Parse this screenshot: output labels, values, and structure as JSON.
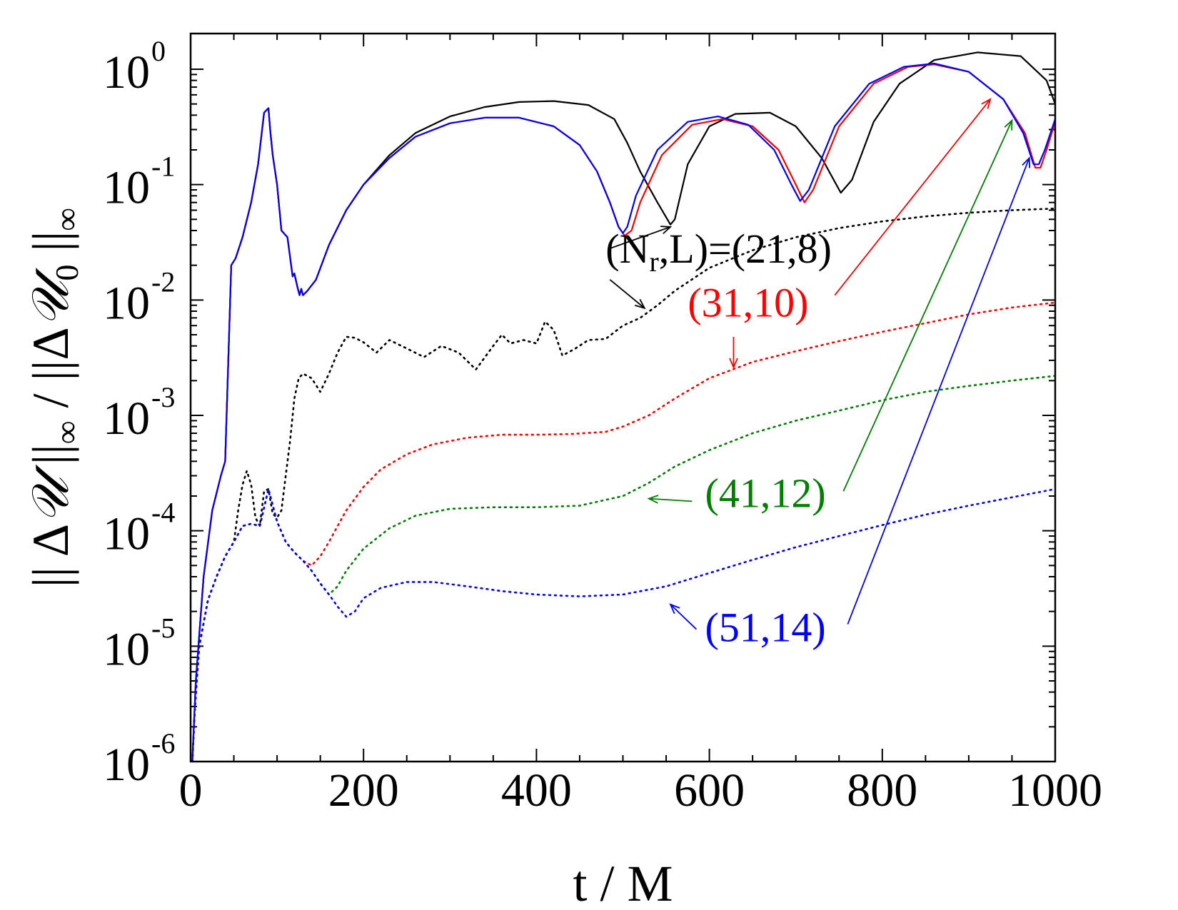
{
  "chart_data": {
    "type": "line",
    "title": "",
    "xlabel": "t / M",
    "ylabel_parts": [
      "|| Δ",
      "𝒰",
      " ||",
      "∞",
      " / ||Δ",
      "𝒰",
      "0",
      " ||",
      "∞"
    ],
    "xlim": [
      0,
      1000
    ],
    "ylim": [
      1e-06,
      2
    ],
    "yscale": "log",
    "x_ticks": [
      "0",
      "200",
      "400",
      "600",
      "800",
      "1000"
    ],
    "y_ticks": [
      {
        "base": "10",
        "exp": "-6"
      },
      {
        "base": "10",
        "exp": "-5"
      },
      {
        "base": "10",
        "exp": "-4"
      },
      {
        "base": "10",
        "exp": "-3"
      },
      {
        "base": "10",
        "exp": "-2"
      },
      {
        "base": "10",
        "exp": "-1"
      },
      {
        "base": "10",
        "exp": "0"
      }
    ],
    "grid": false,
    "legend": "none",
    "series": [
      {
        "style": "solid",
        "color": "#000000",
        "x": [
          2,
          6,
          15,
          25,
          35,
          40,
          47,
          52,
          60,
          70,
          78,
          85,
          90,
          92,
          95,
          100,
          105,
          112,
          118,
          120,
          124,
          126,
          128,
          130,
          135,
          145,
          160,
          180,
          200,
          230,
          260,
          300,
          340,
          380,
          420,
          460,
          490,
          505,
          520,
          540,
          555,
          560,
          575,
          600,
          630,
          670,
          700,
          730,
          752,
          765,
          790,
          820,
          860,
          910,
          960,
          990,
          1000
        ],
        "y": [
          1e-06,
          5e-06,
          4e-05,
          0.00015,
          0.0003,
          0.0004,
          0.02,
          0.023,
          0.035,
          0.07,
          0.15,
          0.42,
          0.46,
          0.3,
          0.18,
          0.1,
          0.04,
          0.035,
          0.016,
          0.017,
          0.0125,
          0.011,
          0.0125,
          0.011,
          0.012,
          0.015,
          0.03,
          0.06,
          0.1,
          0.18,
          0.28,
          0.39,
          0.47,
          0.52,
          0.53,
          0.49,
          0.37,
          0.23,
          0.13,
          0.07,
          0.045,
          0.05,
          0.15,
          0.32,
          0.41,
          0.42,
          0.32,
          0.17,
          0.085,
          0.11,
          0.35,
          0.75,
          1.2,
          1.4,
          1.3,
          0.8,
          0.5
        ]
      },
      {
        "style": "solid",
        "color": "#ff0000",
        "x": [
          2,
          6,
          15,
          25,
          35,
          40,
          47,
          52,
          60,
          70,
          78,
          85,
          90,
          92,
          95,
          100,
          105,
          112,
          118,
          120,
          124,
          126,
          128,
          130,
          135,
          145,
          160,
          180,
          200,
          230,
          260,
          300,
          340,
          380,
          420,
          450,
          470,
          485,
          495,
          502,
          510,
          520,
          545,
          580,
          615,
          650,
          680,
          700,
          710,
          720,
          750,
          790,
          830,
          860,
          900,
          940,
          965,
          977,
          983,
          990,
          1000
        ],
        "y": [
          1e-06,
          5e-06,
          4e-05,
          0.00015,
          0.0003,
          0.0004,
          0.02,
          0.023,
          0.035,
          0.07,
          0.15,
          0.42,
          0.46,
          0.3,
          0.18,
          0.1,
          0.04,
          0.035,
          0.016,
          0.017,
          0.0125,
          0.011,
          0.0125,
          0.011,
          0.012,
          0.015,
          0.03,
          0.06,
          0.1,
          0.17,
          0.26,
          0.34,
          0.38,
          0.38,
          0.32,
          0.22,
          0.13,
          0.07,
          0.043,
          0.036,
          0.04,
          0.07,
          0.18,
          0.33,
          0.37,
          0.32,
          0.2,
          0.1,
          0.07,
          0.09,
          0.32,
          0.75,
          1.05,
          1.1,
          0.95,
          0.55,
          0.28,
          0.14,
          0.14,
          0.2,
          0.35
        ]
      },
      {
        "style": "solid",
        "color": "#0000ff",
        "x": [
          2,
          6,
          15,
          25,
          35,
          40,
          47,
          52,
          60,
          70,
          78,
          85,
          90,
          92,
          95,
          100,
          105,
          112,
          118,
          120,
          124,
          126,
          128,
          130,
          135,
          145,
          160,
          180,
          200,
          230,
          260,
          300,
          340,
          380,
          420,
          450,
          470,
          485,
          495,
          500,
          505,
          515,
          540,
          575,
          610,
          645,
          675,
          695,
          705,
          715,
          745,
          785,
          825,
          860,
          900,
          940,
          963,
          975,
          981,
          988,
          1000
        ],
        "y": [
          1e-06,
          5e-06,
          4e-05,
          0.00015,
          0.0003,
          0.0004,
          0.02,
          0.023,
          0.035,
          0.07,
          0.15,
          0.42,
          0.46,
          0.3,
          0.18,
          0.1,
          0.04,
          0.035,
          0.016,
          0.017,
          0.0125,
          0.011,
          0.0125,
          0.011,
          0.012,
          0.015,
          0.03,
          0.06,
          0.1,
          0.17,
          0.26,
          0.34,
          0.38,
          0.38,
          0.32,
          0.22,
          0.13,
          0.07,
          0.043,
          0.038,
          0.043,
          0.08,
          0.2,
          0.35,
          0.39,
          0.33,
          0.2,
          0.1,
          0.072,
          0.09,
          0.32,
          0.75,
          1.05,
          1.12,
          0.95,
          0.55,
          0.28,
          0.15,
          0.15,
          0.2,
          0.37
        ]
      },
      {
        "style": "dotted",
        "color": "#000000",
        "x": [
          2,
          5,
          10,
          20,
          30,
          40,
          50,
          55,
          60,
          65,
          70,
          75,
          80,
          85,
          90,
          95,
          100,
          105,
          110,
          115,
          120,
          125,
          130,
          140,
          150,
          160,
          170,
          180,
          190,
          200,
          215,
          230,
          250,
          270,
          290,
          310,
          330,
          350,
          360,
          370,
          385,
          400,
          410,
          420,
          430,
          445,
          460,
          480,
          500,
          520,
          540,
          560,
          600,
          650,
          700,
          750,
          800,
          850,
          900,
          950,
          1000
        ],
        "y": [
          1e-06,
          3e-06,
          1e-05,
          2.5e-05,
          4e-05,
          6e-05,
          8e-05,
          0.00015,
          0.00025,
          0.00033,
          0.00025,
          0.00013,
          0.00011,
          0.00022,
          0.00023,
          0.00014,
          0.00013,
          0.00015,
          0.0003,
          0.0006,
          0.0014,
          0.0021,
          0.0023,
          0.0021,
          0.0016,
          0.0023,
          0.0035,
          0.0048,
          0.0047,
          0.0043,
          0.0035,
          0.0045,
          0.0038,
          0.0032,
          0.004,
          0.0035,
          0.0025,
          0.004,
          0.005,
          0.0042,
          0.0045,
          0.0042,
          0.0065,
          0.0055,
          0.0033,
          0.0038,
          0.0045,
          0.0046,
          0.006,
          0.007,
          0.009,
          0.012,
          0.019,
          0.027,
          0.035,
          0.042,
          0.048,
          0.053,
          0.057,
          0.06,
          0.062
        ]
      },
      {
        "style": "dotted",
        "color": "#ff0000",
        "x": [
          2,
          5,
          10,
          20,
          30,
          40,
          50,
          60,
          70,
          80,
          90,
          100,
          110,
          120,
          130,
          140,
          150,
          160,
          170,
          180,
          200,
          220,
          250,
          280,
          320,
          360,
          400,
          440,
          480,
          500,
          530,
          560,
          600,
          650,
          700,
          750,
          800,
          850,
          900,
          950,
          1000
        ],
        "y": [
          1e-06,
          3e-06,
          1e-05,
          2.5e-05,
          4e-05,
          6e-05,
          8e-05,
          0.00011,
          0.000115,
          0.00011,
          0.00023,
          0.00012,
          8e-05,
          6.5e-05,
          5.5e-05,
          5e-05,
          6e-05,
          8e-05,
          0.00011,
          0.00015,
          0.00024,
          0.00034,
          0.00046,
          0.00056,
          0.00064,
          0.00068,
          0.00068,
          0.00069,
          0.00072,
          0.0008,
          0.001,
          0.0014,
          0.0021,
          0.0029,
          0.0036,
          0.0044,
          0.0053,
          0.0063,
          0.0075,
          0.0086,
          0.0095
        ]
      },
      {
        "style": "dotted",
        "color": "#008000",
        "x": [
          2,
          5,
          10,
          20,
          30,
          40,
          50,
          60,
          70,
          80,
          90,
          100,
          110,
          120,
          130,
          140,
          150,
          160,
          170,
          180,
          200,
          230,
          260,
          300,
          350,
          400,
          450,
          500,
          530,
          560,
          600,
          650,
          700,
          750,
          800,
          850,
          900,
          950,
          1000
        ],
        "y": [
          1e-06,
          3e-06,
          1e-05,
          2.5e-05,
          4e-05,
          6e-05,
          8e-05,
          0.00011,
          0.000115,
          0.00011,
          0.00023,
          0.00012,
          8e-05,
          6.5e-05,
          5.5e-05,
          4.5e-05,
          3.5e-05,
          2.8e-05,
          3.3e-05,
          4.5e-05,
          7e-05,
          0.000105,
          0.000135,
          0.000155,
          0.00016,
          0.00016,
          0.000165,
          0.0002,
          0.00026,
          0.00036,
          0.0005,
          0.0007,
          0.0009,
          0.0011,
          0.00135,
          0.0016,
          0.0018,
          0.002,
          0.0022
        ]
      },
      {
        "style": "dotted",
        "color": "#0000ff",
        "x": [
          2,
          5,
          10,
          20,
          30,
          40,
          50,
          60,
          70,
          80,
          90,
          100,
          110,
          120,
          130,
          140,
          150,
          160,
          170,
          180,
          190,
          200,
          220,
          250,
          280,
          320,
          360,
          400,
          450,
          500,
          550,
          600,
          650,
          700,
          750,
          800,
          850,
          900,
          950,
          1000
        ],
        "y": [
          1e-06,
          3e-06,
          1e-05,
          2.5e-05,
          4e-05,
          6e-05,
          8e-05,
          0.00011,
          0.000115,
          0.00011,
          0.00023,
          0.00012,
          8e-05,
          6.5e-05,
          5.5e-05,
          4.5e-05,
          3.5e-05,
          2.8e-05,
          2.2e-05,
          1.8e-05,
          2e-05,
          2.6e-05,
          3.2e-05,
          3.6e-05,
          3.6e-05,
          3.3e-05,
          3e-05,
          2.8e-05,
          2.7e-05,
          2.8e-05,
          3.3e-05,
          4.3e-05,
          5.6e-05,
          7.2e-05,
          9e-05,
          0.000112,
          0.000138,
          0.000165,
          0.000195,
          0.00023
        ]
      }
    ],
    "annotations": [
      {
        "text_parts": [
          "(N",
          "r",
          ",L)=(21,8)"
        ],
        "color": "#000000",
        "x": 480,
        "y": 0.021,
        "arrows": [
          {
            "from": [
              485,
              0.028
            ],
            "to": [
              555,
              0.043
            ]
          },
          {
            "from": [
              485,
              0.015
            ],
            "to": [
              525,
              0.0085
            ]
          }
        ]
      },
      {
        "text": "(31,10)",
        "color": "#ff0000",
        "x": 575,
        "y": 0.0072,
        "arrows": [
          {
            "from": [
              745,
              0.011
            ],
            "to": [
              925,
              0.55
            ]
          },
          {
            "from": [
              628,
              0.0048
            ],
            "to": [
              628,
              0.0026
            ]
          }
        ]
      },
      {
        "text": "(41,12)",
        "color": "#008000",
        "x": 595,
        "y": 0.00016,
        "arrows": [
          {
            "from": [
              755,
              0.00022
            ],
            "to": [
              950,
              0.36
            ]
          },
          {
            "from": [
              580,
              0.00018
            ],
            "to": [
              530,
              0.00019
            ]
          }
        ]
      },
      {
        "text": "(51,14)",
        "color": "#0000ff",
        "x": 595,
        "y": 1.1e-05,
        "arrows": [
          {
            "from": [
              760,
              1.55e-05
            ],
            "to": [
              970,
              0.17
            ]
          },
          {
            "from": [
              585,
              1.4e-05
            ],
            "to": [
              555,
              2.3e-05
            ]
          }
        ]
      }
    ]
  }
}
